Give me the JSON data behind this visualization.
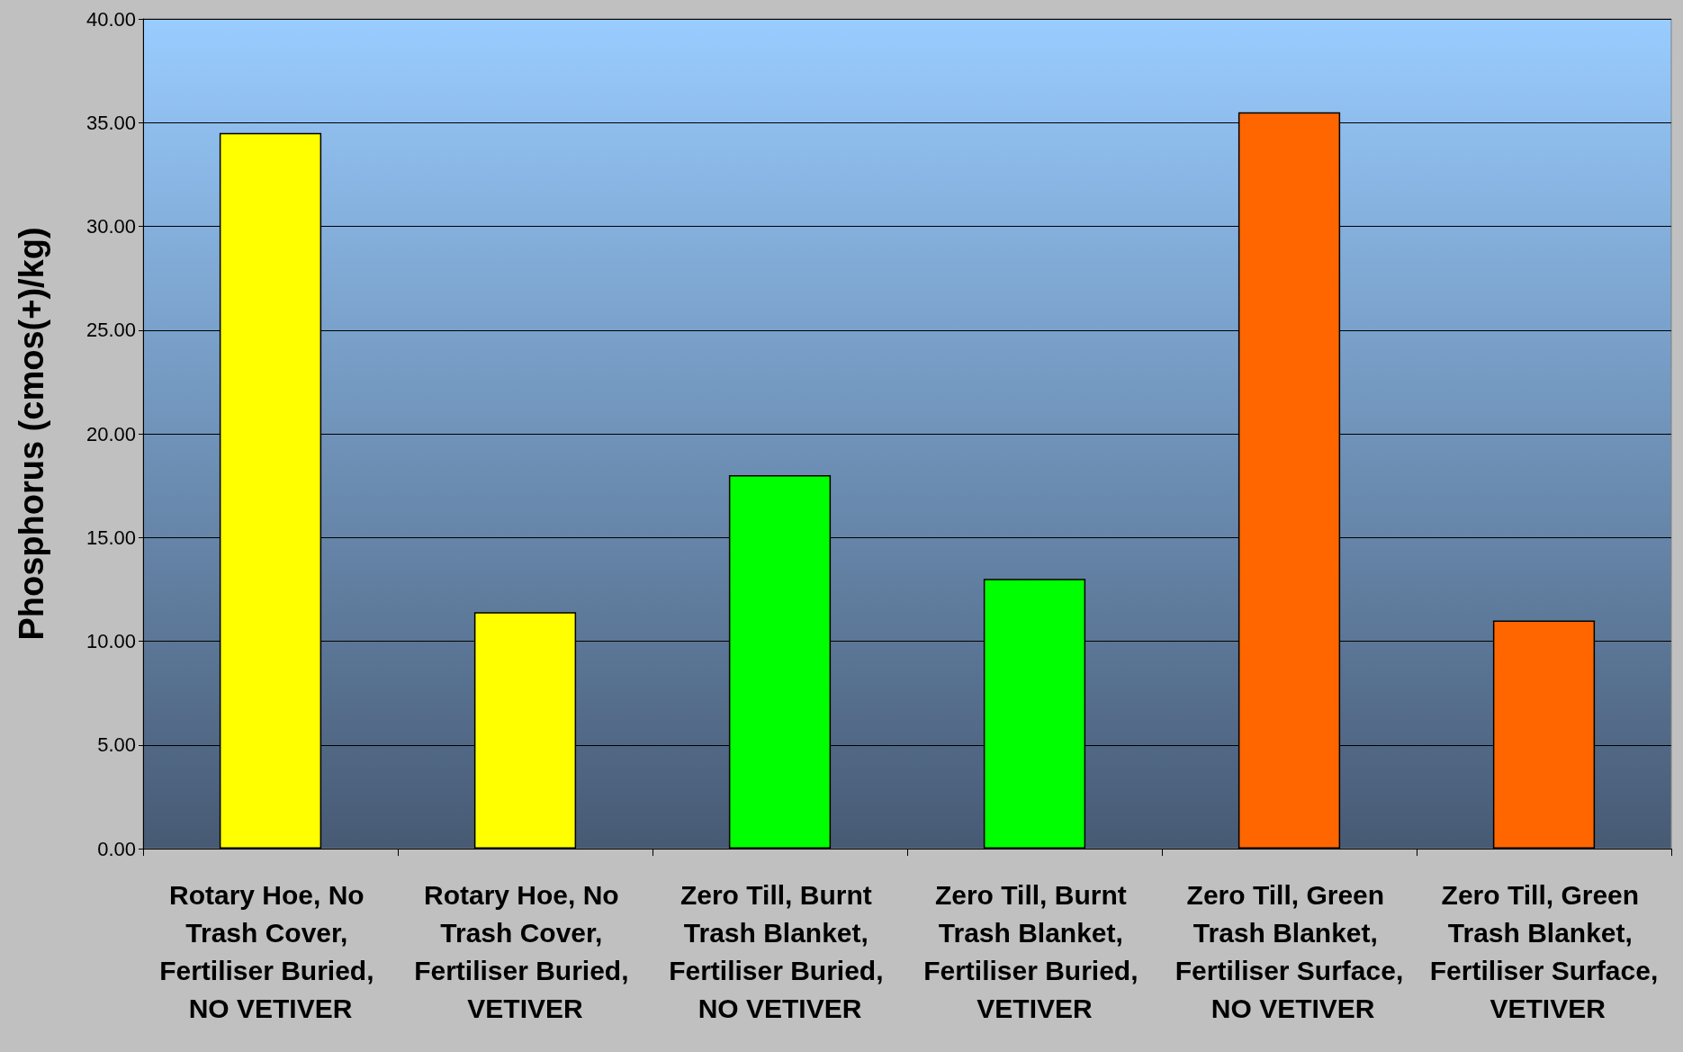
{
  "chart_data": {
    "type": "bar",
    "ylabel": "Phosphorus (cmos(+)/kg)",
    "categories": [
      "Rotary Hoe, No Trash Cover, Fertiliser Buried, NO VETIVER",
      "Rotary Hoe, No Trash Cover, Fertiliser Buried, VETIVER",
      "Zero Till, Burnt Trash Blanket, Fertiliser Buried, NO VETIVER",
      "Zero Till, Burnt Trash Blanket, Fertiliser Buried, VETIVER",
      "Zero Till, Green Trash Blanket, Fertiliser Surface, NO VETIVER",
      "Zero Till, Green Trash Blanket, Fertiliser Surface, VETIVER"
    ],
    "values": [
      34.5,
      11.4,
      18.0,
      13.0,
      35.5,
      11.0
    ],
    "colors": [
      "#ffff00",
      "#ffff00",
      "#00ff00",
      "#00ff00",
      "#ff6600",
      "#ff6600"
    ],
    "ylim": [
      0,
      40
    ],
    "yticks": [
      {
        "value": 0,
        "label": "0.00"
      },
      {
        "value": 5,
        "label": "5.00"
      },
      {
        "value": 10,
        "label": "10.00"
      },
      {
        "value": 15,
        "label": "15.00"
      },
      {
        "value": 20,
        "label": "20.00"
      },
      {
        "value": 25,
        "label": "25.00"
      },
      {
        "value": 30,
        "label": "30.00"
      },
      {
        "value": 35,
        "label": "35.00"
      },
      {
        "value": 40,
        "label": "40.00"
      }
    ],
    "grid": "y"
  }
}
